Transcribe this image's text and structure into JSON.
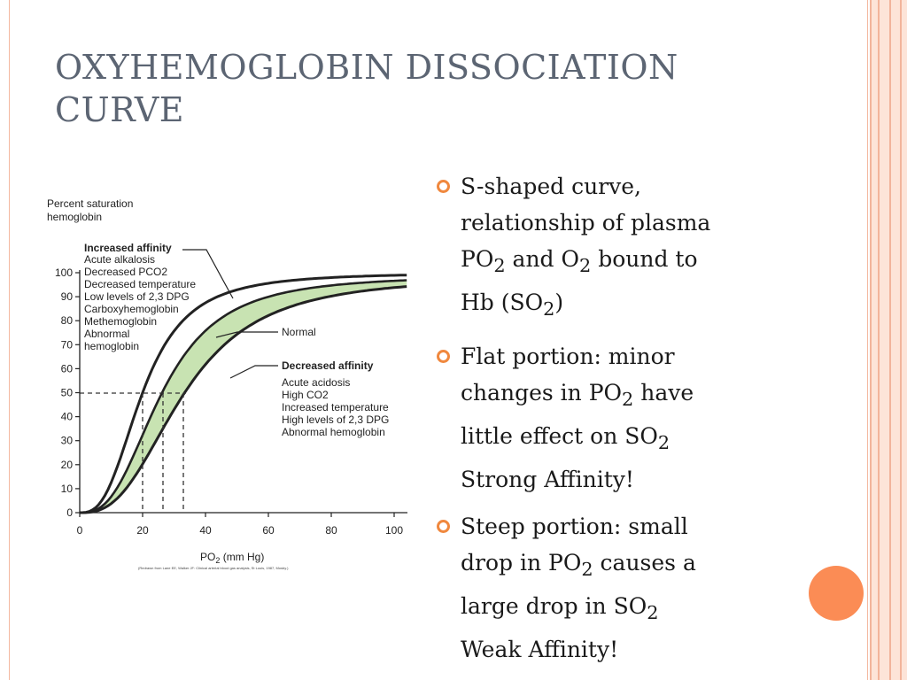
{
  "slide": {
    "title_line1": "OXYHEMOGLOBIN DISSOCIATION",
    "title_line2": "CURVE",
    "colors": {
      "accent": "#f0883e",
      "circle": "#fb8c55",
      "stripe": "#f2b49b",
      "stripe_fill": "#fde4d8",
      "title": "#5c6573",
      "band": "#c8e3b2"
    }
  },
  "figure": {
    "ylabel_line1": "Percent saturation",
    "ylabel_line2": "hemoglobin",
    "xlabel_main": "PO",
    "xlabel_sub": "2",
    "xlabel_unit": " (mm Hg)",
    "x_ticks": [
      "0",
      "20",
      "40",
      "60",
      "80",
      "100"
    ],
    "y_ticks": [
      "0",
      "10",
      "20",
      "30",
      "40",
      "50",
      "60",
      "70",
      "80",
      "90",
      "100"
    ],
    "increased_affinity_title": "Increased affinity",
    "increased_affinity_items": [
      "Acute alkalosis",
      "Decreased PCO2",
      "Decreased temperature",
      "Low levels of 2,3 DPG",
      "Carboxyhemoglobin",
      "Methemoglobin",
      "Abnormal",
      "hemoglobin"
    ],
    "normal_label": "Normal",
    "decreased_affinity_title": "Decreased affinity",
    "decreased_affinity_items": [
      "Acute acidosis",
      "High CO2",
      "Increased temperature",
      "High levels of 2,3 DPG",
      "Abnormal hemoglobin"
    ],
    "citation": "(Redrawn from Lane EE, Walker JF: Clinical arterial blood gas analysis, St Louis, 1987, Mosby.)"
  },
  "bullets": [
    {
      "lines": [
        [
          {
            "t": "S-shaped curve,"
          }
        ],
        [
          {
            "t": "relationship of plasma"
          }
        ],
        [
          {
            "t": "PO"
          },
          {
            "t": "2",
            "sub": true
          },
          {
            "t": " and O"
          },
          {
            "t": "2",
            "sub": true
          },
          {
            "t": " bound to"
          }
        ],
        [
          {
            "t": "Hb (SO"
          },
          {
            "t": "2",
            "sub": true
          },
          {
            "t": ")"
          }
        ]
      ]
    },
    {
      "lines": [
        [
          {
            "t": "Flat portion: minor"
          }
        ],
        [
          {
            "t": "changes in PO"
          },
          {
            "t": "2",
            "sub": true
          },
          {
            "t": " have"
          }
        ],
        [
          {
            "t": "little effect on SO"
          },
          {
            "t": "2",
            "sub": true
          }
        ],
        [
          {
            "t": "Strong Affinity!"
          }
        ]
      ]
    },
    {
      "lines": [
        [
          {
            "t": "Steep portion: small"
          }
        ],
        [
          {
            "t": "drop in PO"
          },
          {
            "t": "2",
            "sub": true
          },
          {
            "t": " causes a"
          }
        ],
        [
          {
            "t": "large drop in SO"
          },
          {
            "t": "2",
            "sub": true
          }
        ],
        [
          {
            "t": "Weak Affinity!"
          }
        ]
      ]
    }
  ]
}
